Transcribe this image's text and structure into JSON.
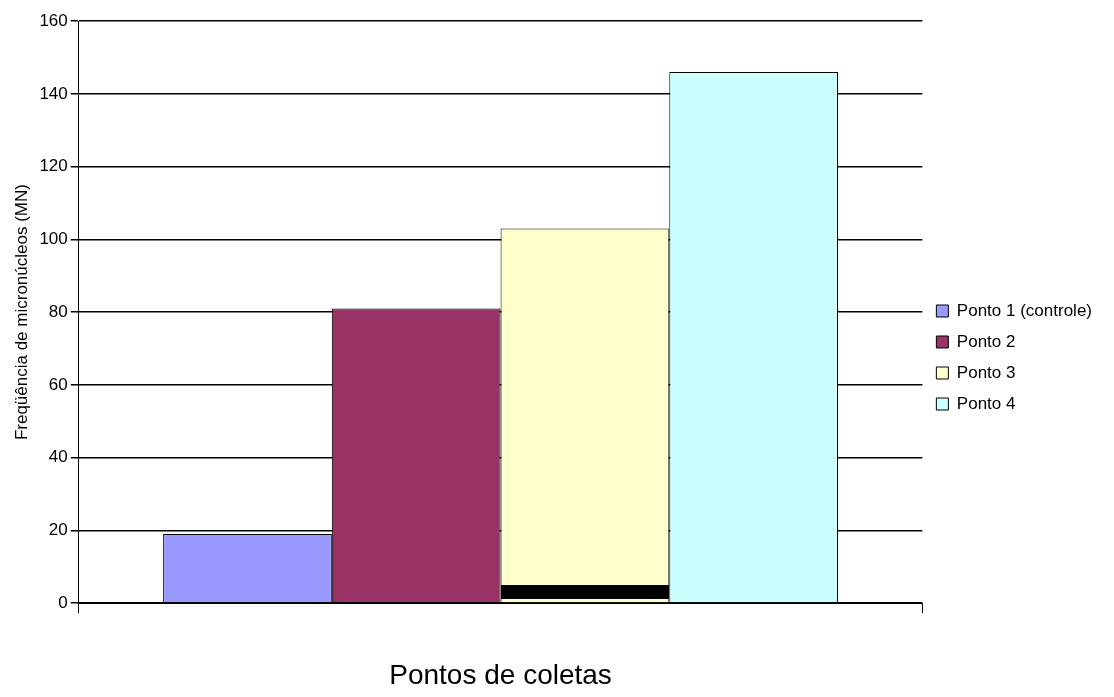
{
  "chart_data": {
    "type": "bar",
    "xlabel": "Pontos de coletas",
    "ylabel": "Freqüência de micronúcleos (MN)",
    "categories": [
      null
    ],
    "series": [
      {
        "name": "Ponto 1 (controle)",
        "color": "#9999ff",
        "values": [
          19
        ]
      },
      {
        "name": "Ponto 2",
        "color": "#993366",
        "values": [
          81
        ]
      },
      {
        "name": "Ponto 3",
        "color": "#ffffcc",
        "values": [
          103
        ]
      },
      {
        "name": "Ponto 4",
        "color": "#ccffff",
        "values": [
          146
        ]
      }
    ],
    "ylim": [
      0,
      160
    ],
    "yticks": [
      0,
      20,
      40,
      60,
      80,
      100,
      120,
      140,
      160
    ],
    "grid": "y",
    "legend": "right"
  }
}
